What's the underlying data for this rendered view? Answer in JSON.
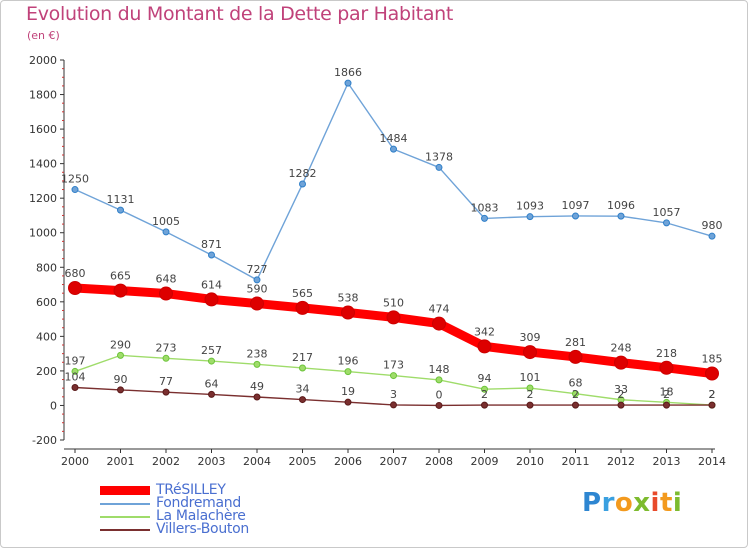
{
  "header": {
    "title": "Evolution du Montant de la Dette par Habitant",
    "subtitle": "(en €)"
  },
  "logo": {
    "text": "Proxiti"
  },
  "chart_data": {
    "type": "line",
    "title": "Evolution du Montant de la Dette par Habitant",
    "ylabel": "(en €)",
    "xlabel": "",
    "x": [
      "2000",
      "2001",
      "2002",
      "2003",
      "2004",
      "2005",
      "2006",
      "2007",
      "2008",
      "2009",
      "2010",
      "2011",
      "2012",
      "2013",
      "2014"
    ],
    "ylim": [
      -200,
      2000
    ],
    "yticks": [
      -200,
      0,
      200,
      400,
      600,
      800,
      1000,
      1200,
      1400,
      1600,
      1800,
      2000
    ],
    "grid": false,
    "legend_position": "bottom-left",
    "series": [
      {
        "name": "TRéSILLEY",
        "color": "#ff0000",
        "marker_color": "#cc0000",
        "values": [
          680,
          665,
          648,
          614,
          590,
          565,
          538,
          510,
          474,
          342,
          309,
          281,
          248,
          218,
          185
        ],
        "labels": [
          "680",
          "665",
          "648",
          "614",
          "590",
          "565",
          "538",
          "510",
          "474",
          "342",
          "309",
          "281",
          "248",
          "218",
          "185"
        ]
      },
      {
        "name": "Fondremand",
        "color": "#6fa3d8",
        "marker_color": "#2f7fc8",
        "values": [
          1250,
          1131,
          1005,
          871,
          727,
          1282,
          1866,
          1484,
          1378,
          1083,
          1093,
          1097,
          1096,
          1057,
          980
        ],
        "labels": [
          "1250",
          "1131",
          "1005",
          "871",
          "727",
          "1282",
          "1866",
          "1484",
          "1378",
          "1083",
          "1093",
          "1097",
          "1096",
          "1057",
          "980"
        ]
      },
      {
        "name": "La Malachère",
        "color": "#9fdc6a",
        "marker_color": "#6cc43a",
        "values": [
          197,
          290,
          273,
          257,
          238,
          217,
          196,
          173,
          148,
          94,
          101,
          68,
          33,
          18,
          2
        ],
        "labels": [
          "197",
          "290",
          "273",
          "257",
          "238",
          "217",
          "196",
          "173",
          "148",
          "94",
          "101",
          "68",
          "33",
          "18",
          "2"
        ]
      },
      {
        "name": "Villers-Bouton",
        "color": "#7a2f2f",
        "marker_color": "#5a1a1a",
        "values": [
          104,
          90,
          77,
          64,
          49,
          34,
          19,
          3,
          0,
          2,
          2,
          2,
          2,
          2,
          2
        ],
        "labels": [
          "104",
          "90",
          "77",
          "64",
          "49",
          "34",
          "19",
          "3",
          "0",
          "2",
          "2",
          "2",
          "2",
          "2",
          "2"
        ]
      }
    ]
  }
}
